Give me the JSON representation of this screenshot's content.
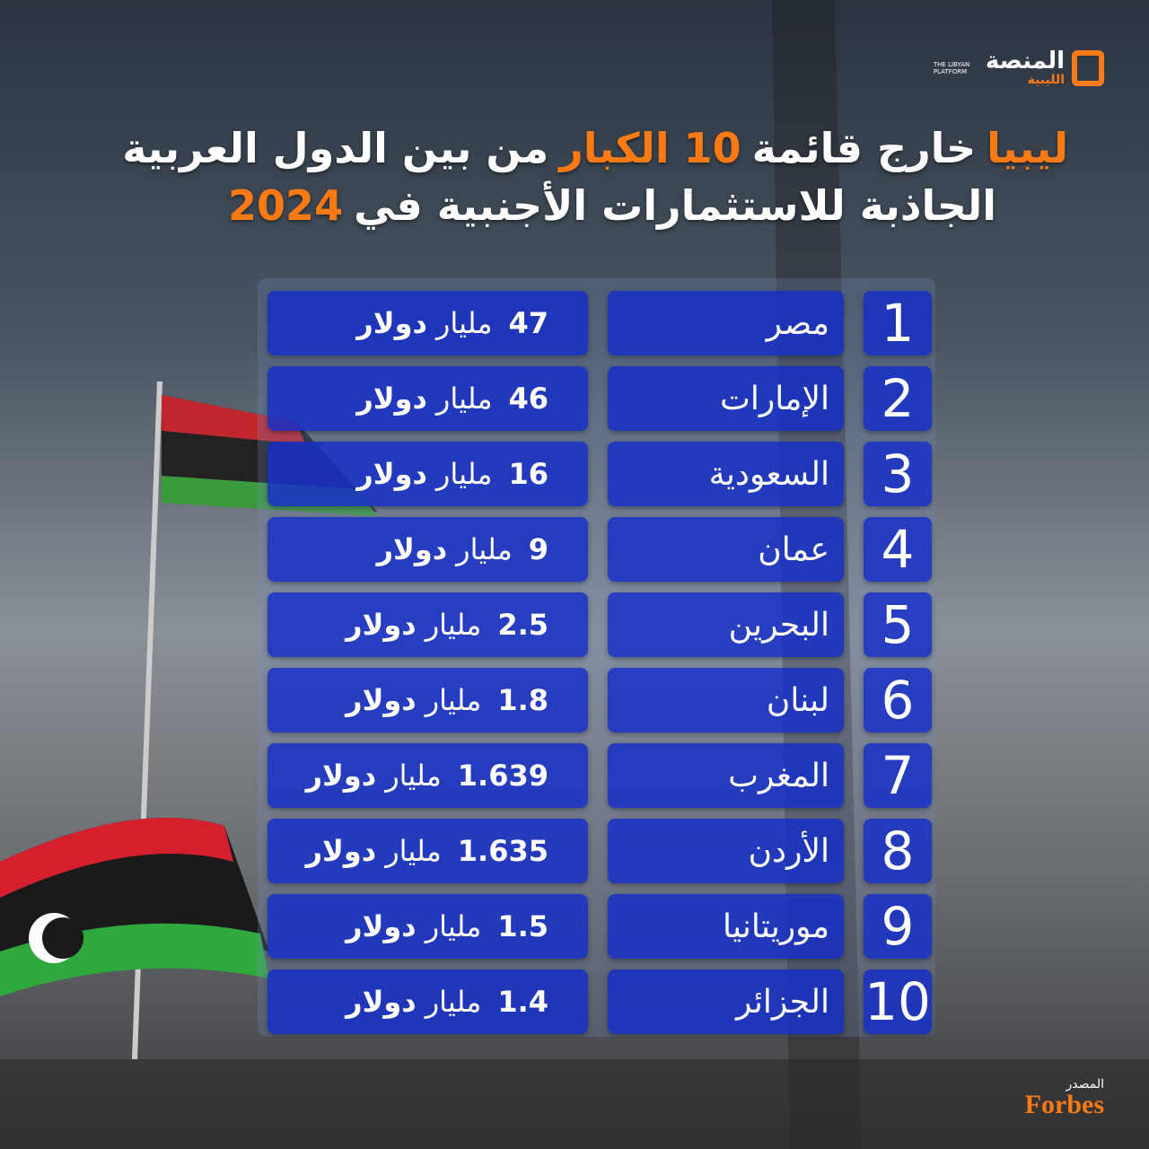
{
  "logo": {
    "name": "المنصة",
    "name_sub": "الليبية",
    "latin": "THE LIBYAN PLATFORM"
  },
  "title": {
    "line1": [
      "ليبيا",
      "خارج قائمة",
      "10 الكبار",
      "من بين الدول العربية"
    ],
    "line2": [
      "الجاذبة للاستثمارات الأجنبية في",
      "2024"
    ]
  },
  "table": {
    "rows": [
      {
        "rank": 1,
        "country": "مصر",
        "value": 47,
        "unit": "مليار",
        "currency": "دولار"
      },
      {
        "rank": 2,
        "country": "الإمارات",
        "value": 46,
        "unit": "مليار",
        "currency": "دولار"
      },
      {
        "rank": 3,
        "country": "السعودية",
        "value": 16,
        "unit": "مليار",
        "currency": "دولار"
      },
      {
        "rank": 4,
        "country": "عمان",
        "value": 9,
        "unit": "مليار",
        "currency": "دولار"
      },
      {
        "rank": 5,
        "country": "البحرين",
        "value": 2.5,
        "unit": "مليار",
        "currency": "دولار"
      },
      {
        "rank": 6,
        "country": "لبنان",
        "value": 1.8,
        "unit": "مليار",
        "currency": "دولار"
      },
      {
        "rank": 7,
        "country": "المغرب",
        "value": 1.639,
        "unit": "مليار",
        "currency": "دولار"
      },
      {
        "rank": 8,
        "country": "الأردن",
        "value": 1.635,
        "unit": "مليار",
        "currency": "دولار"
      },
      {
        "rank": 9,
        "country": "موريتانيا",
        "value": 1.5,
        "unit": "مليار",
        "currency": "دولار"
      },
      {
        "rank": 10,
        "country": "الجزائر",
        "value": 1.4,
        "unit": "مليار",
        "currency": "دولار"
      }
    ]
  },
  "source": {
    "label": "المصدر",
    "name": "Forbes"
  }
}
